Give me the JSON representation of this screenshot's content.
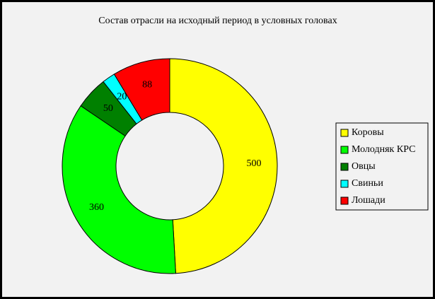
{
  "chart_data": {
    "type": "doughnut",
    "title": "Состав отрасли на исходный период в условных головах",
    "categories": [
      "Коровы",
      "Молодняк КРС",
      "Овцы",
      "Свиньи",
      "Лошади"
    ],
    "values": [
      500,
      360,
      50,
      20,
      88
    ],
    "colors": [
      "#ffff00",
      "#00ff00",
      "#008000",
      "#00ffff",
      "#ff0000"
    ],
    "legend": "right"
  }
}
